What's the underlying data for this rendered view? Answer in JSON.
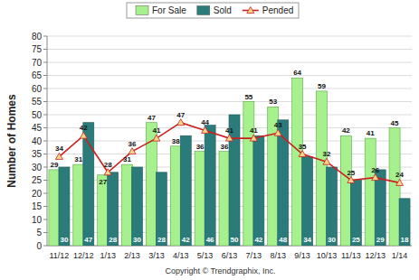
{
  "chart_data": {
    "type": "bar",
    "y_label": "Number of Homes",
    "annotations": [
      "Copyright © Trendgraphix, Inc."
    ],
    "categories": [
      "11/12",
      "12/12",
      "1/13",
      "2/13",
      "3/13",
      "4/13",
      "5/13",
      "6/13",
      "7/13",
      "8/13",
      "9/13",
      "10/13",
      "11/13",
      "12/13",
      "1/14"
    ],
    "series": [
      {
        "name": "For Sale",
        "type": "bar",
        "color": "#a6f08e",
        "values": [
          29,
          31,
          27,
          31,
          47,
          38,
          36,
          36,
          55,
          53,
          64,
          59,
          42,
          41,
          45
        ]
      },
      {
        "name": "Sold",
        "type": "bar",
        "color": "#2b7b7b",
        "values": [
          30,
          47,
          28,
          30,
          28,
          42,
          46,
          50,
          42,
          48,
          34,
          30,
          25,
          29,
          18
        ]
      },
      {
        "name": "Pended",
        "type": "line",
        "color": "#cc2020",
        "marker": "triangle",
        "line_style": "solid",
        "values": [
          34,
          42,
          28,
          36,
          41,
          47,
          44,
          41,
          41,
          43,
          35,
          32,
          25,
          26,
          24
        ]
      }
    ],
    "ylim": [
      0,
      80
    ],
    "yticks": [
      0,
      5,
      10,
      15,
      20,
      25,
      30,
      35,
      40,
      45,
      50,
      55,
      60,
      65,
      70,
      75,
      80
    ],
    "grid": true,
    "legend": "top",
    "data_labels": true
  }
}
